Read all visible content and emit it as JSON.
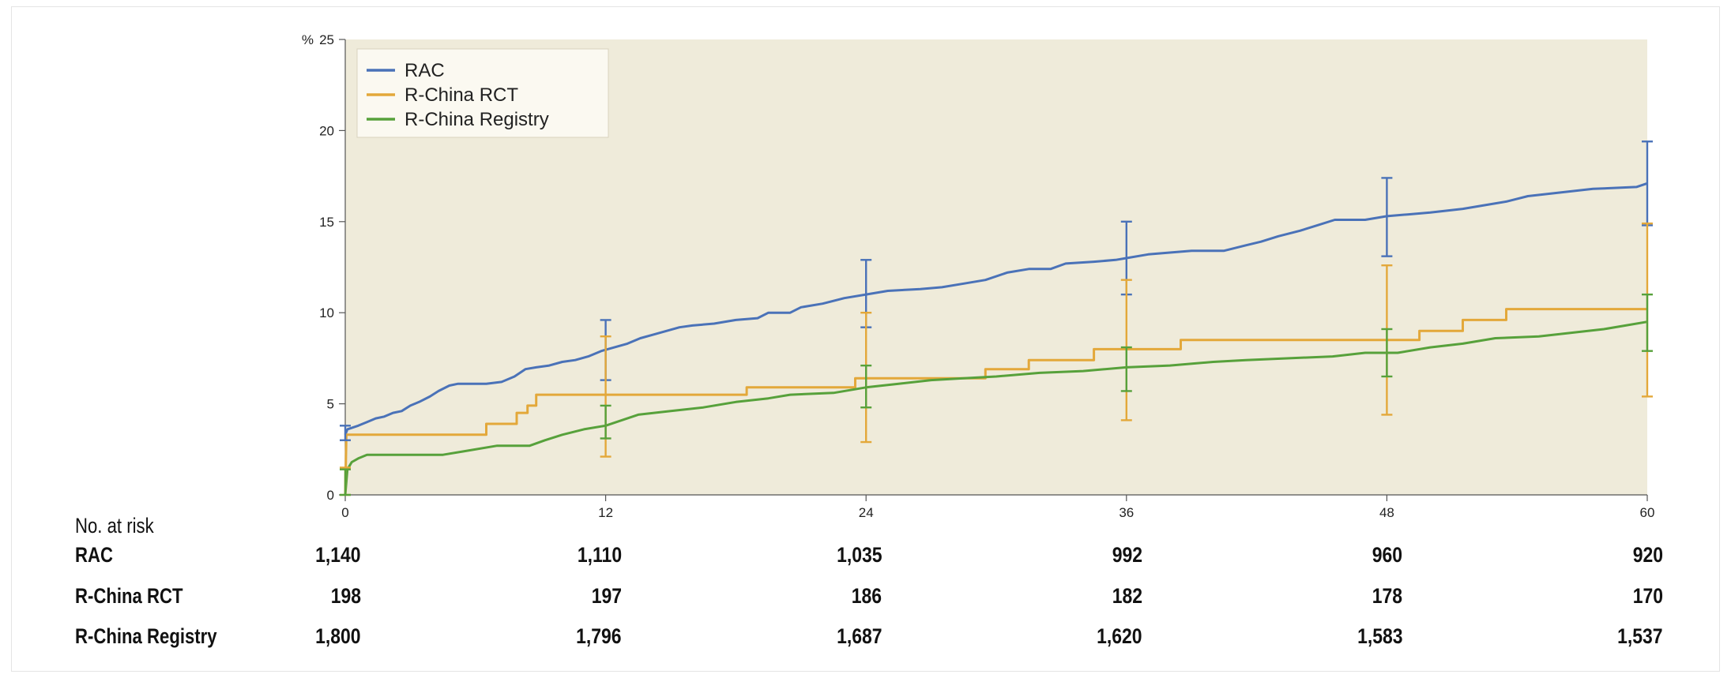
{
  "chart_data": {
    "type": "line",
    "y_unit_label": "%",
    "ylim": [
      0,
      25
    ],
    "yticks": [
      0,
      5,
      10,
      15,
      20,
      25
    ],
    "xlim": [
      0,
      60
    ],
    "xticks": [
      0,
      12,
      24,
      36,
      48,
      60
    ],
    "legend_position": "top-left",
    "background": "#efebda",
    "series": [
      {
        "name": "RAC",
        "color": "#4a72b8",
        "points": [
          [
            0,
            3.3
          ],
          [
            0.1,
            3.6
          ],
          [
            0.6,
            3.8
          ],
          [
            1.0,
            4.0
          ],
          [
            1.4,
            4.2
          ],
          [
            1.8,
            4.3
          ],
          [
            2.2,
            4.5
          ],
          [
            2.6,
            4.6
          ],
          [
            3.0,
            4.9
          ],
          [
            3.4,
            5.1
          ],
          [
            3.9,
            5.4
          ],
          [
            4.3,
            5.7
          ],
          [
            4.8,
            6.0
          ],
          [
            5.2,
            6.1
          ],
          [
            6.5,
            6.1
          ],
          [
            7.2,
            6.2
          ],
          [
            7.8,
            6.5
          ],
          [
            8.3,
            6.9
          ],
          [
            8.8,
            7.0
          ],
          [
            9.4,
            7.1
          ],
          [
            10.0,
            7.3
          ],
          [
            10.6,
            7.4
          ],
          [
            11.2,
            7.6
          ],
          [
            11.8,
            7.9
          ],
          [
            12.4,
            8.1
          ],
          [
            13.0,
            8.3
          ],
          [
            13.6,
            8.6
          ],
          [
            14.2,
            8.8
          ],
          [
            14.8,
            9.0
          ],
          [
            15.4,
            9.2
          ],
          [
            16.0,
            9.3
          ],
          [
            17.0,
            9.4
          ],
          [
            18.0,
            9.6
          ],
          [
            19.0,
            9.7
          ],
          [
            19.5,
            10.0
          ],
          [
            20.5,
            10.0
          ],
          [
            21.0,
            10.3
          ],
          [
            22.0,
            10.5
          ],
          [
            23.0,
            10.8
          ],
          [
            24.0,
            11.0
          ],
          [
            25.0,
            11.2
          ],
          [
            26.5,
            11.3
          ],
          [
            27.5,
            11.4
          ],
          [
            28.5,
            11.6
          ],
          [
            29.5,
            11.8
          ],
          [
            30.5,
            12.2
          ],
          [
            31.5,
            12.4
          ],
          [
            32.5,
            12.4
          ],
          [
            33.2,
            12.7
          ],
          [
            34.5,
            12.8
          ],
          [
            35.5,
            12.9
          ],
          [
            36.0,
            13.0
          ],
          [
            37.0,
            13.2
          ],
          [
            38.0,
            13.3
          ],
          [
            39.0,
            13.4
          ],
          [
            40.5,
            13.4
          ],
          [
            41.5,
            13.7
          ],
          [
            42.2,
            13.9
          ],
          [
            43.0,
            14.2
          ],
          [
            44.0,
            14.5
          ],
          [
            44.8,
            14.8
          ],
          [
            45.6,
            15.1
          ],
          [
            47.0,
            15.1
          ],
          [
            48.0,
            15.3
          ],
          [
            49.0,
            15.4
          ],
          [
            50.0,
            15.5
          ],
          [
            51.5,
            15.7
          ],
          [
            52.5,
            15.9
          ],
          [
            53.5,
            16.1
          ],
          [
            54.5,
            16.4
          ],
          [
            56.0,
            16.6
          ],
          [
            57.5,
            16.8
          ],
          [
            59.5,
            16.9
          ],
          [
            60,
            17.1
          ]
        ],
        "error_bars": [
          [
            0,
            3.0,
            3.8
          ],
          [
            12,
            6.3,
            9.6
          ],
          [
            24,
            9.2,
            12.9
          ],
          [
            36,
            11.0,
            15.0
          ],
          [
            48,
            13.1,
            17.4
          ],
          [
            60,
            14.8,
            19.4
          ]
        ]
      },
      {
        "name": "R-China RCT",
        "color": "#e3a83a",
        "points": [
          [
            0,
            0
          ],
          [
            0.05,
            3.3
          ],
          [
            6.5,
            3.3
          ],
          [
            6.5,
            3.9
          ],
          [
            7.9,
            3.9
          ],
          [
            7.9,
            4.5
          ],
          [
            8.4,
            4.5
          ],
          [
            8.4,
            4.9
          ],
          [
            8.8,
            4.9
          ],
          [
            8.8,
            5.5
          ],
          [
            18.5,
            5.5
          ],
          [
            18.5,
            5.9
          ],
          [
            23.5,
            5.9
          ],
          [
            23.5,
            6.4
          ],
          [
            29.5,
            6.4
          ],
          [
            29.5,
            6.9
          ],
          [
            31.5,
            6.9
          ],
          [
            31.5,
            7.4
          ],
          [
            34.5,
            7.4
          ],
          [
            34.5,
            8.0
          ],
          [
            38.5,
            8.0
          ],
          [
            38.5,
            8.5
          ],
          [
            49.5,
            8.5
          ],
          [
            49.5,
            9.0
          ],
          [
            51.5,
            9.0
          ],
          [
            51.5,
            9.6
          ],
          [
            53.5,
            9.6
          ],
          [
            53.5,
            10.2
          ],
          [
            60,
            10.2
          ]
        ],
        "error_bars": [
          [
            0,
            0,
            1.5
          ],
          [
            12,
            2.1,
            8.7
          ],
          [
            24,
            2.9,
            10.0
          ],
          [
            36,
            4.1,
            11.8
          ],
          [
            48,
            4.4,
            12.6
          ],
          [
            60,
            5.4,
            14.9
          ]
        ]
      },
      {
        "name": "R-China Registry",
        "color": "#57a13b",
        "points": [
          [
            0,
            0
          ],
          [
            0.1,
            1.4
          ],
          [
            0.3,
            1.8
          ],
          [
            0.6,
            2.0
          ],
          [
            1.0,
            2.2
          ],
          [
            4.5,
            2.2
          ],
          [
            5.5,
            2.4
          ],
          [
            7.0,
            2.7
          ],
          [
            8.5,
            2.7
          ],
          [
            9.2,
            3.0
          ],
          [
            10.0,
            3.3
          ],
          [
            11.0,
            3.6
          ],
          [
            12.0,
            3.8
          ],
          [
            12.5,
            4.0
          ],
          [
            13.5,
            4.4
          ],
          [
            15.0,
            4.6
          ],
          [
            16.5,
            4.8
          ],
          [
            18.0,
            5.1
          ],
          [
            19.5,
            5.3
          ],
          [
            20.5,
            5.5
          ],
          [
            22.5,
            5.6
          ],
          [
            24.0,
            5.9
          ],
          [
            25.5,
            6.1
          ],
          [
            27.0,
            6.3
          ],
          [
            28.5,
            6.4
          ],
          [
            30.0,
            6.5
          ],
          [
            32.0,
            6.7
          ],
          [
            34.0,
            6.8
          ],
          [
            36.0,
            7.0
          ],
          [
            38.0,
            7.1
          ],
          [
            40.0,
            7.3
          ],
          [
            41.5,
            7.4
          ],
          [
            43.5,
            7.5
          ],
          [
            45.5,
            7.6
          ],
          [
            47.0,
            7.8
          ],
          [
            48.5,
            7.8
          ],
          [
            50.0,
            8.1
          ],
          [
            51.5,
            8.3
          ],
          [
            53.0,
            8.6
          ],
          [
            55.0,
            8.7
          ],
          [
            56.5,
            8.9
          ],
          [
            58.0,
            9.1
          ],
          [
            59.0,
            9.3
          ],
          [
            60,
            9.5
          ]
        ],
        "error_bars": [
          [
            0,
            0,
            1.4
          ],
          [
            12,
            3.1,
            4.9
          ],
          [
            24,
            4.8,
            7.1
          ],
          [
            36,
            5.7,
            8.1
          ],
          [
            48,
            6.5,
            9.1
          ],
          [
            60,
            7.9,
            11.0
          ]
        ]
      }
    ]
  },
  "risk_table": {
    "title": "No. at risk",
    "rows": [
      {
        "label": "RAC",
        "values": [
          "1,140",
          "1,110",
          "1,035",
          "992",
          "960",
          "920"
        ]
      },
      {
        "label": "R-China RCT",
        "values": [
          "198",
          "197",
          "186",
          "182",
          "178",
          "170"
        ]
      },
      {
        "label": "R-China Registry",
        "values": [
          "1,800",
          "1,796",
          "1,687",
          "1,620",
          "1,583",
          "1,537"
        ]
      }
    ]
  }
}
